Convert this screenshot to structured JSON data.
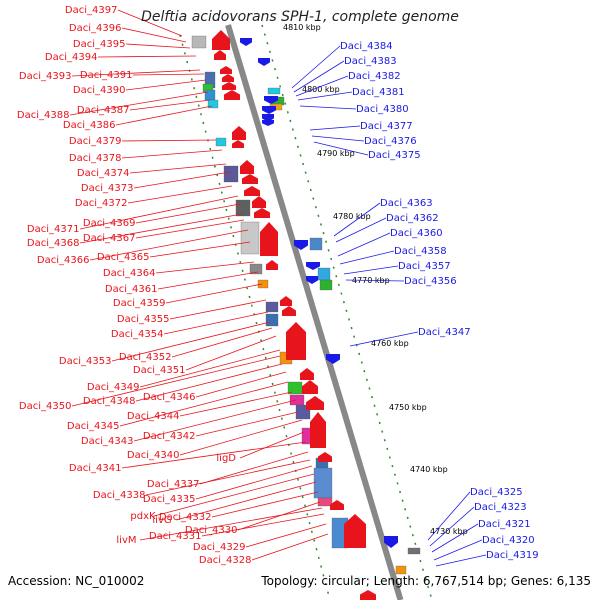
{
  "title": "Delftia acidovorans SPH-1, complete genome",
  "footer": {
    "accession": "Accession: NC_010002",
    "summary": "Topology: circular; Length: 6,767,514 bp; Genes: 6,135"
  },
  "colors": {
    "forward": "#e8141c",
    "reverse": "#1a1ae6",
    "backbone": "#888888",
    "tick": "#2a8a2a"
  },
  "ticks": [
    {
      "label": "4810 kbp"
    },
    {
      "label": "4800 kbp"
    },
    {
      "label": "4790 kbp"
    },
    {
      "label": "4780 kbp"
    },
    {
      "label": "4770 kbp"
    },
    {
      "label": "4760 kbp"
    },
    {
      "label": "4750 kbp"
    },
    {
      "label": "4740 kbp"
    },
    {
      "label": "4730 kbp"
    }
  ],
  "left_labels": [
    "Daci_4397",
    "Daci_4396",
    "Daci_4395",
    "Daci_4394",
    "Daci_4393",
    "Daci_4391",
    "Daci_4390",
    "Daci_4388",
    "Daci_4387",
    "Daci_4386",
    "Daci_4379",
    "Daci_4378",
    "Daci_4374",
    "Daci_4373",
    "Daci_4372",
    "Daci_4371",
    "Daci_4369",
    "Daci_4368",
    "Daci_4367",
    "Daci_4366",
    "Daci_4365",
    "Daci_4364",
    "Daci_4361",
    "Daci_4359",
    "Daci_4355",
    "Daci_4354",
    "Daci_4353",
    "Daci_4352",
    "Daci_4351",
    "Daci_4349",
    "Daci_4350",
    "Daci_4348",
    "Daci_4346",
    "Daci_4345",
    "Daci_4344",
    "Daci_4343",
    "Daci_4342",
    "Daci_4340",
    "ligD",
    "Daci_4341",
    "Daci_4337",
    "Daci_4338",
    "Daci_4335",
    "pdxK",
    "livG",
    "Daci_4332",
    "Daci_4330",
    "livM",
    "Daci_4331",
    "Daci_4329",
    "Daci_4328"
  ],
  "right_labels": [
    "Daci_4384",
    "Daci_4383",
    "Daci_4382",
    "Daci_4381",
    "Daci_4380",
    "Daci_4377",
    "Daci_4376",
    "Daci_4375",
    "Daci_4363",
    "Daci_4362",
    "Daci_4360",
    "Daci_4358",
    "Daci_4357",
    "Daci_4356",
    "Daci_4347",
    "Daci_4325",
    "Daci_4323",
    "Daci_4321",
    "Daci_4320",
    "Daci_4319"
  ]
}
